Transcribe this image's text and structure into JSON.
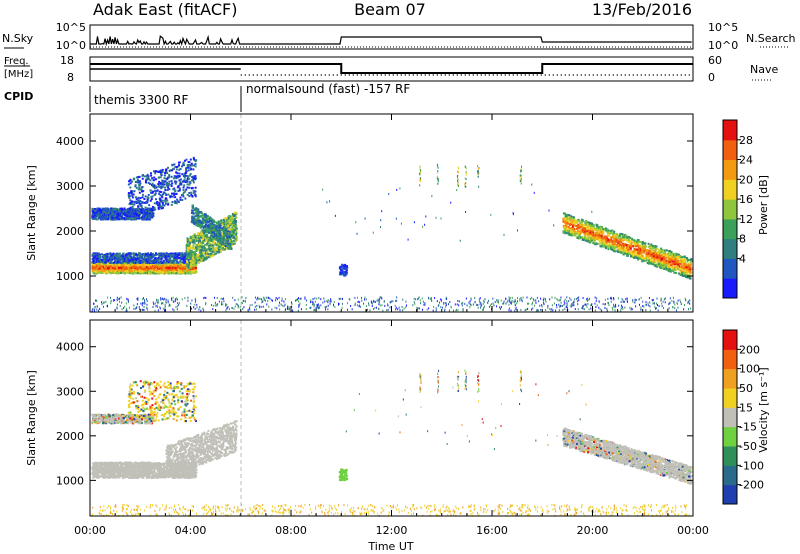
{
  "header": {
    "station": "Adak East (fitACF)",
    "beam": "Beam 07",
    "date": "13/Feb/2016"
  },
  "top_panels": {
    "nsky_label": "N.Sky",
    "nsky_ticks": [
      "10^5",
      "10^0"
    ],
    "nsearch_label": "N.Search",
    "nsearch_ticks": [
      "10^5",
      "10^0"
    ],
    "freq_label_1": "Freq.",
    "freq_label_2": "[MHz]",
    "freq_ticks": [
      "18",
      "8"
    ],
    "nave_label": "Nave",
    "nave_ticks": [
      "60",
      "0"
    ],
    "cpid_label": "CPID",
    "cpid_segments": [
      {
        "label": "themis 3300 RF",
        "start_hour": 0,
        "end_hour": 6
      },
      {
        "label": "normalsound (fast) -157 RF",
        "start_hour": 6,
        "end_hour": 24
      }
    ]
  },
  "chart_data": [
    {
      "type": "heatmap",
      "name": "power",
      "x_unit": "hours UT",
      "xlim": [
        0,
        24
      ],
      "xticks": [
        "00:00",
        "04:00",
        "08:00",
        "12:00",
        "16:00",
        "20:00",
        "00:00"
      ],
      "ylabel": "Slant Range [km]",
      "ylim": [
        200,
        4600
      ],
      "yticks": [
        1000,
        2000,
        3000,
        4000
      ],
      "colorbar": {
        "label": "Power [dB]",
        "ticks": [
          "28",
          "24",
          "20",
          "16",
          "12",
          "8",
          "4"
        ],
        "colors": [
          "#1a1aff",
          "#1f56c0",
          "#2f7f7f",
          "#3aa05a",
          "#8fc63c",
          "#f0d020",
          "#f39a10",
          "#f06010",
          "#e51010"
        ]
      }
    },
    {
      "type": "heatmap",
      "name": "velocity",
      "x_unit": "hours UT",
      "xlim": [
        0,
        24
      ],
      "xticks": [
        "00:00",
        "04:00",
        "08:00",
        "12:00",
        "16:00",
        "20:00",
        "00:00"
      ],
      "xlabel": "Time UT",
      "ylabel": "Slant Range [km]",
      "ylim": [
        200,
        4600
      ],
      "yticks": [
        1000,
        2000,
        3000,
        4000
      ],
      "colorbar": {
        "label": "Velocity [m s⁻¹]",
        "ticks": [
          "200",
          "100",
          "50",
          "15",
          "-15",
          "-50",
          "-100",
          "-200"
        ],
        "colors": [
          "#1f3fb0",
          "#2a6a8a",
          "#2f8f5a",
          "#6fd040",
          "#c0c0b8",
          "#f0d020",
          "#f0a020",
          "#f06010",
          "#e51010"
        ]
      }
    }
  ]
}
